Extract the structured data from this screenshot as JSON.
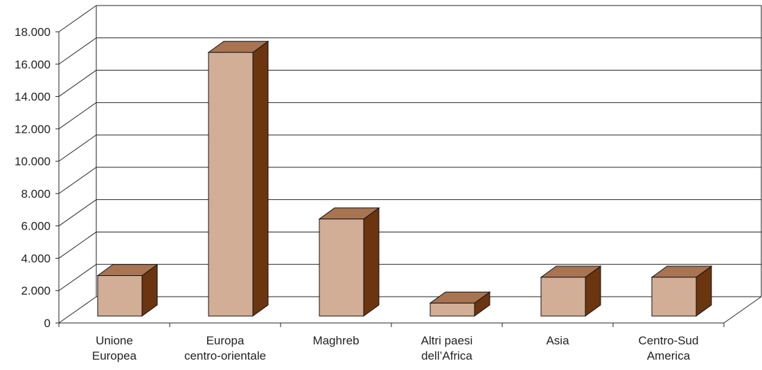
{
  "chart_data": {
    "type": "bar",
    "title": "",
    "xlabel": "",
    "ylabel": "",
    "categories": [
      [
        "Unione",
        "Europea"
      ],
      [
        "Europa",
        "centro-orientale"
      ],
      [
        "Maghreb"
      ],
      [
        "Altri paesi",
        "dell’Africa"
      ],
      [
        "Asia"
      ],
      [
        "Centro-Sud",
        "America"
      ]
    ],
    "values": [
      2500,
      16300,
      6000,
      800,
      2400,
      2400
    ],
    "ylim": [
      0,
      18000
    ],
    "yticks": [
      "0",
      "2.000",
      "4.000",
      "6.000",
      "8.000",
      "10.000",
      "12.000",
      "14.000",
      "16.000",
      "18.000"
    ],
    "grid": true,
    "legend": "none",
    "colors": {
      "bar_front": "#D2AE96",
      "bar_top": "#A87452",
      "bar_side": "#6B3510",
      "outline": "#111111",
      "grid": "#222222"
    }
  }
}
